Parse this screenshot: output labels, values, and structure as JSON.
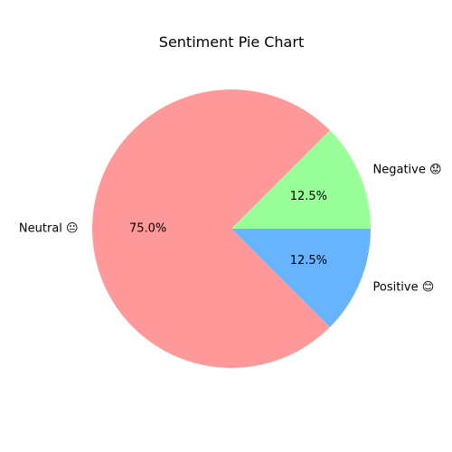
{
  "chart_data": {
    "type": "pie",
    "title": "Sentiment Pie Chart",
    "slices": [
      {
        "name": "Negative 😟",
        "value": 12.5,
        "pct_label": "12.5%",
        "color": "#99ff99"
      },
      {
        "name": "Neutral 😐",
        "value": 75.0,
        "pct_label": "75.0%",
        "color": "#ff9999"
      },
      {
        "name": "Positive 😊",
        "value": 12.5,
        "pct_label": "12.5%",
        "color": "#66b3ff"
      }
    ],
    "start_angle_deg": 0,
    "direction": "counterclockwise",
    "legend": "none"
  }
}
